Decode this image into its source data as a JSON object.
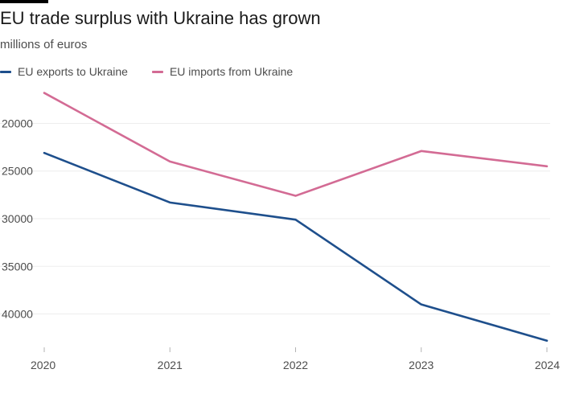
{
  "chart_data": {
    "type": "line",
    "title": "EU trade surplus with Ukraine has grown",
    "subtitle": "millions of euros",
    "x": [
      "2020",
      "2021",
      "2022",
      "2023",
      "2024"
    ],
    "y_ticks": [
      20000,
      25000,
      30000,
      35000,
      40000
    ],
    "ylim": [
      16500,
      43500
    ],
    "y_inverted": true,
    "grid": true,
    "legend_position": "top-left",
    "series": [
      {
        "name": "EU exports to Ukraine",
        "color": "#1e4f8c",
        "values": [
          23100,
          28300,
          30100,
          39000,
          42800
        ]
      },
      {
        "name": "EU imports from Ukraine",
        "color": "#d36b94",
        "values": [
          16800,
          24000,
          27600,
          22900,
          24500
        ]
      }
    ]
  }
}
